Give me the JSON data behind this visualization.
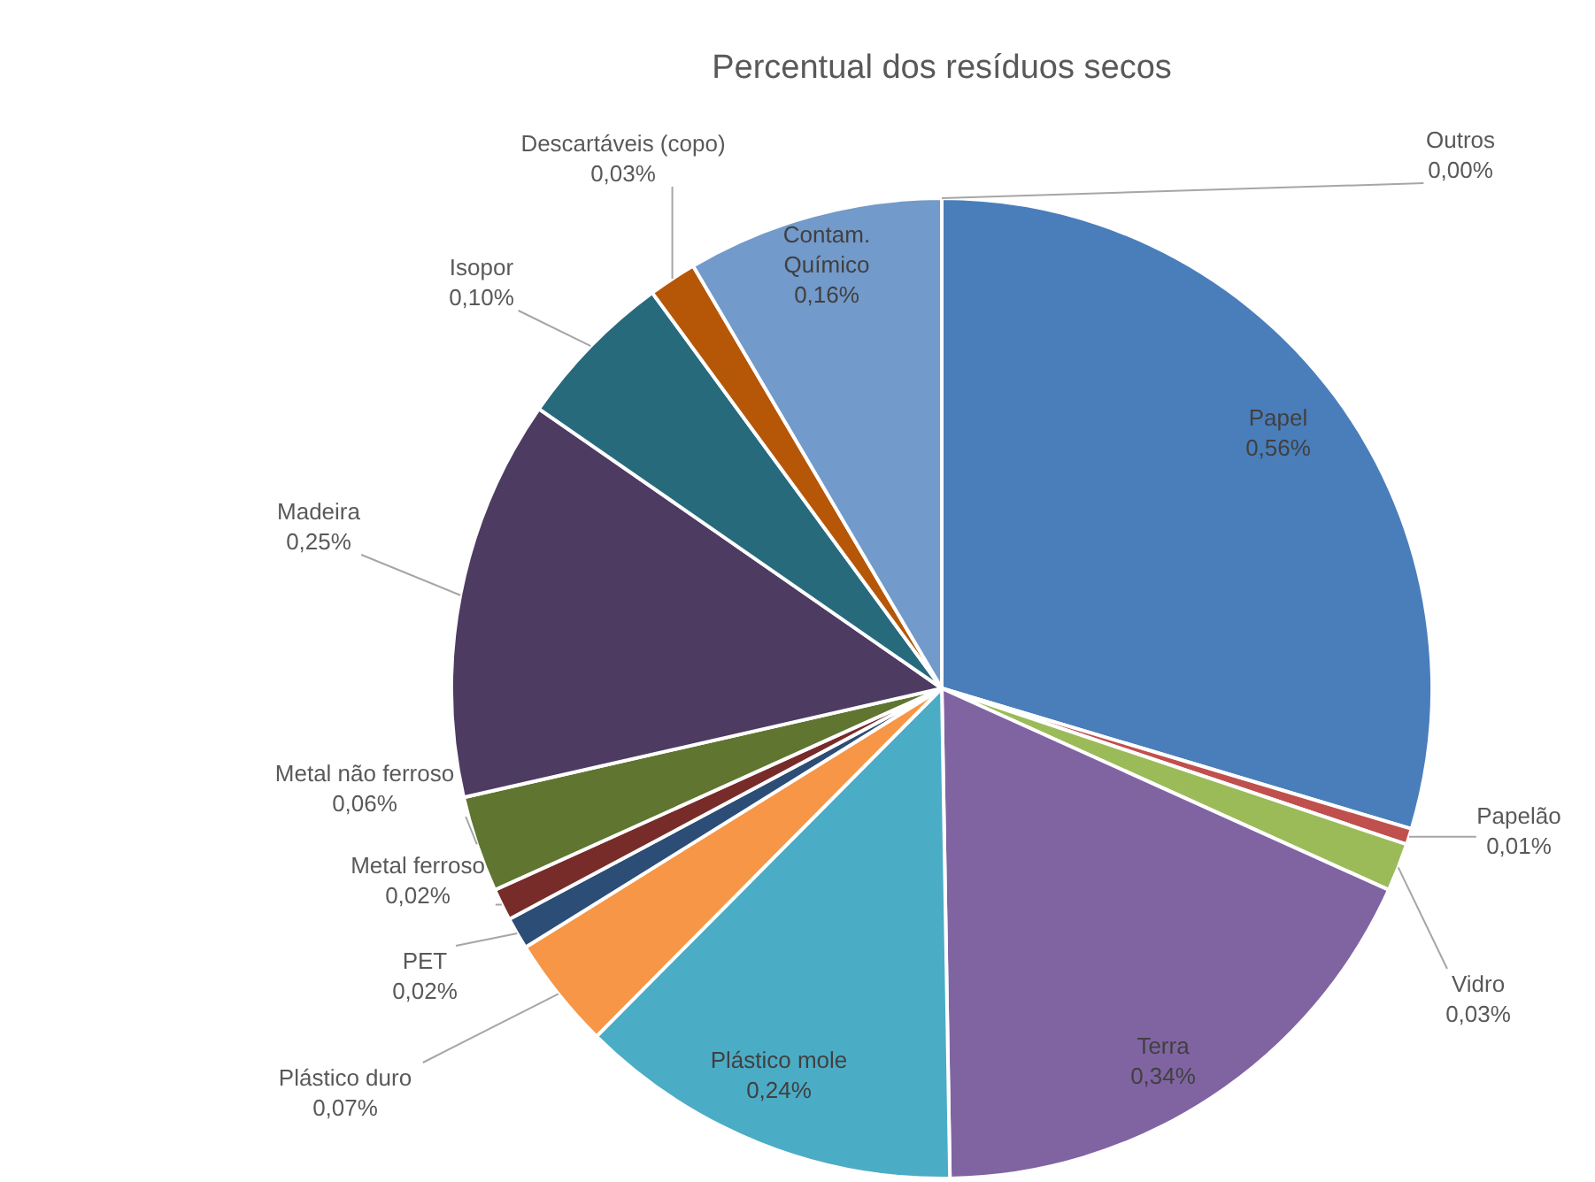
{
  "chart_data": {
    "type": "pie",
    "title": "Percentual dos resíduos secos",
    "categories": [
      "Papel",
      "Papelão",
      "Vidro",
      "Terra",
      "Plástico mole",
      "Plástico duro",
      "PET",
      "Metal ferroso",
      "Metal não ferroso",
      "Madeira",
      "Isopor",
      "Descartáveis (copo)",
      "Contam. Químico",
      "Outros"
    ],
    "values": [
      0.56,
      0.01,
      0.03,
      0.34,
      0.24,
      0.07,
      0.02,
      0.02,
      0.06,
      0.25,
      0.1,
      0.03,
      0.16,
      0.0
    ],
    "value_labels": [
      "0,56%",
      "0,01%",
      "0,03%",
      "0,34%",
      "0,24%",
      "0,07%",
      "0,02%",
      "0,02%",
      "0,06%",
      "0,25%",
      "0,10%",
      "0,03%",
      "0,16%",
      "0,00%"
    ],
    "colors": [
      "#4a7ebb",
      "#c0504d",
      "#9bbb59",
      "#8064a2",
      "#4bacc6",
      "#f79646",
      "#2c4d75",
      "#772c2a",
      "#5f7530",
      "#4d3b62",
      "#276a7c",
      "#b65708",
      "#729aca",
      "#d6e2f0"
    ],
    "legend": false
  }
}
